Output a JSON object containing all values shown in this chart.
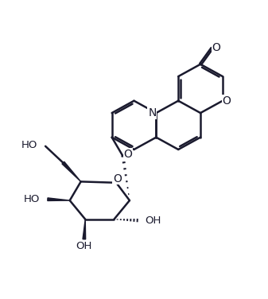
{
  "bg_color": "#ffffff",
  "line_color": "#1a1a2e",
  "line_width": 1.8,
  "figsize": [
    3.37,
    3.76
  ],
  "dpi": 100,
  "xlim": [
    -1.5,
    10.5
  ],
  "ylim": [
    0.2,
    10.5
  ],
  "rA": [
    [
      7.5,
      9.2
    ],
    [
      8.5,
      8.65
    ],
    [
      8.5,
      7.55
    ],
    [
      7.5,
      7.0
    ],
    [
      6.5,
      7.55
    ],
    [
      6.5,
      8.65
    ]
  ],
  "rB_extra": [
    [
      7.5,
      5.9
    ],
    [
      6.5,
      5.35
    ],
    [
      5.5,
      5.9
    ],
    [
      5.5,
      7.0
    ]
  ],
  "rC_extra": [
    [
      4.5,
      5.35
    ],
    [
      3.5,
      5.9
    ],
    [
      3.5,
      7.0
    ],
    [
      4.5,
      7.55
    ]
  ],
  "glyco_O": [
    4.0,
    5.05
  ],
  "sO_r": [
    3.7,
    3.85
  ],
  "sC1": [
    4.3,
    3.05
  ],
  "sC2": [
    3.6,
    2.2
  ],
  "sC3": [
    2.3,
    2.2
  ],
  "sC4": [
    1.6,
    3.05
  ],
  "sC5": [
    2.1,
    3.9
  ],
  "C6": [
    1.3,
    4.75
  ],
  "OH_C6": [
    0.5,
    5.5
  ],
  "N_label": "N",
  "O_ring_label": "O",
  "O_keto_label": "O",
  "O_glyco_label": "O",
  "O_sugar_label": "O",
  "HO_label": "HO",
  "OH_label": "OH"
}
